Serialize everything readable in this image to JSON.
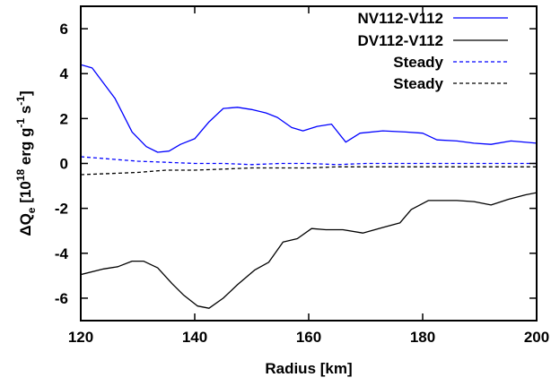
{
  "chart_data": {
    "type": "line",
    "title": "",
    "xlabel": "Radius [km]",
    "ylabel": {
      "base": "ΔQ",
      "sub": "e",
      "pre": " [10",
      "sup1": "18",
      "mid": " erg g",
      "sup2": "-1",
      "mid2": " s",
      "sup3": "-1",
      "post": "]"
    },
    "xlim": [
      120,
      200
    ],
    "ylim": [
      -7,
      7
    ],
    "xticks": [
      120,
      140,
      160,
      180,
      200
    ],
    "yticks": [
      -6,
      -4,
      -2,
      0,
      2,
      4,
      6
    ],
    "grid": false,
    "legend_position": "top-right",
    "series": [
      {
        "name": "NV112-V112",
        "color": "#0000ff",
        "dash": "solid",
        "x": [
          120,
          122,
          126,
          129,
          131.5,
          133.5,
          135.5,
          137.5,
          140,
          142.5,
          145,
          147.5,
          150,
          152.5,
          154.5,
          157,
          159,
          161.5,
          164,
          166.5,
          169,
          173,
          177,
          180,
          182.5,
          186,
          189,
          192,
          195.5,
          200
        ],
        "y": [
          4.4,
          4.25,
          2.9,
          1.4,
          0.75,
          0.5,
          0.55,
          0.85,
          1.1,
          1.85,
          2.45,
          2.5,
          2.4,
          2.25,
          2.05,
          1.6,
          1.45,
          1.65,
          1.75,
          0.95,
          1.35,
          1.45,
          1.4,
          1.35,
          1.05,
          1.0,
          0.9,
          0.85,
          1.0,
          0.9
        ]
      },
      {
        "name": "DV112-V112",
        "color": "#000000",
        "dash": "solid",
        "x": [
          120,
          124,
          126.5,
          129,
          131,
          133.5,
          136,
          138,
          140.5,
          142.5,
          145,
          147.5,
          150.5,
          153,
          155.5,
          158,
          160.5,
          163,
          166,
          169.5,
          173,
          176,
          178,
          181,
          183.5,
          186,
          189,
          192,
          195,
          198,
          200
        ],
        "y": [
          -4.95,
          -4.7,
          -4.6,
          -4.35,
          -4.35,
          -4.65,
          -5.35,
          -5.85,
          -6.35,
          -6.45,
          -6.0,
          -5.4,
          -4.75,
          -4.4,
          -3.5,
          -3.35,
          -2.9,
          -2.95,
          -2.95,
          -3.1,
          -2.85,
          -2.65,
          -2.05,
          -1.65,
          -1.65,
          -1.65,
          -1.7,
          -1.85,
          -1.6,
          -1.4,
          -1.3
        ]
      },
      {
        "name": "Steady",
        "color": "#0000ff",
        "dash": "dashed",
        "x": [
          120,
          125,
          130,
          135,
          140,
          145,
          150,
          155,
          160,
          165,
          170,
          175,
          180,
          185,
          190,
          195,
          200
        ],
        "y": [
          0.3,
          0.2,
          0.1,
          0.05,
          0.0,
          0.0,
          -0.05,
          0.0,
          0.0,
          -0.05,
          0.0,
          0.0,
          0.0,
          0.0,
          0.0,
          0.0,
          0.0
        ]
      },
      {
        "name": "Steady",
        "color": "#000000",
        "dash": "dashed",
        "x": [
          120,
          125,
          130,
          135,
          140,
          145,
          150,
          155,
          160,
          165,
          170,
          175,
          180,
          185,
          190,
          195,
          200
        ],
        "y": [
          -0.5,
          -0.45,
          -0.4,
          -0.3,
          -0.3,
          -0.25,
          -0.2,
          -0.2,
          -0.2,
          -0.15,
          -0.15,
          -0.15,
          -0.15,
          -0.15,
          -0.15,
          -0.15,
          -0.15
        ]
      }
    ]
  }
}
